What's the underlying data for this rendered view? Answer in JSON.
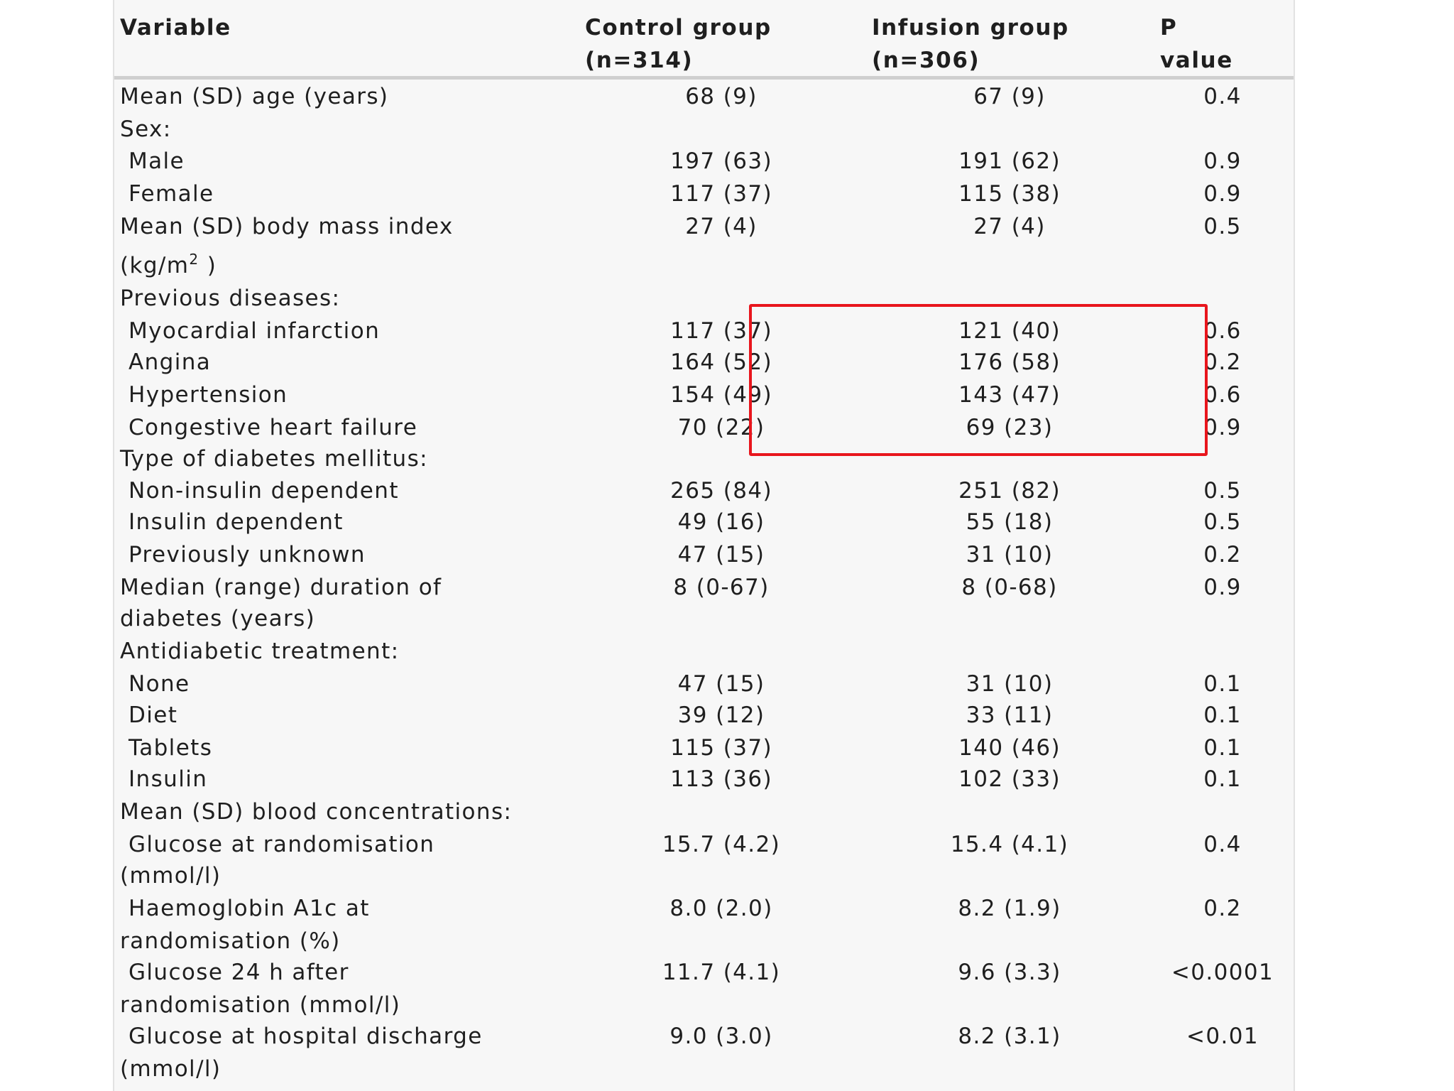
{
  "header": {
    "variable": "Variable",
    "control_line1": "Control group",
    "control_line2": "(n=314)",
    "infusion_line1": "Infusion group",
    "infusion_line2": "(n=306)",
    "p_line1": "P",
    "p_line2": "value"
  },
  "rows": [
    {
      "label": "Mean (SD) age (years)",
      "control": "68 (9)",
      "infusion": "67 (9)",
      "p": "0.4"
    },
    {
      "label": "Sex:",
      "control": "",
      "infusion": "",
      "p": ""
    },
    {
      "label": "Male",
      "control": "197 (63)",
      "infusion": "191 (62)",
      "p": "0.9"
    },
    {
      "label": "Female",
      "control": "117 (37)",
      "infusion": "115 (38)",
      "p": "0.9"
    },
    {
      "label": "Mean (SD) body mass index",
      "control": "27 (4)",
      "infusion": "27 (4)",
      "p": "0.5"
    },
    {
      "label": "(kg/m",
      "label_sup": "2",
      "label_tail": " )",
      "control": "",
      "infusion": "",
      "p": ""
    },
    {
      "label": "Previous diseases:",
      "control": "",
      "infusion": "",
      "p": ""
    },
    {
      "label": "Myocardial infarction",
      "control": "117 (37)",
      "infusion": "121 (40)",
      "p": "0.6"
    },
    {
      "label": "Angina",
      "control": "164 (52)",
      "infusion": "176 (58)",
      "p": "0.2"
    },
    {
      "label": "Hypertension",
      "control": "154 (49)",
      "infusion": "143 (47)",
      "p": "0.6"
    },
    {
      "label": "Congestive heart failure",
      "control": "70 (22)",
      "infusion": "69 (23)",
      "p": "0.9"
    },
    {
      "label": "Type of diabetes mellitus:",
      "control": "",
      "infusion": "",
      "p": ""
    },
    {
      "label": "Non-insulin dependent",
      "control": "265 (84)",
      "infusion": "251 (82)",
      "p": "0.5"
    },
    {
      "label": "Insulin dependent",
      "control": "49 (16)",
      "infusion": "55 (18)",
      "p": "0.5"
    },
    {
      "label": "Previously unknown",
      "control": "47 (15)",
      "infusion": "31 (10)",
      "p": "0.2"
    },
    {
      "label": "Median (range) duration of",
      "control": "8 (0-67)",
      "infusion": "8 (0-68)",
      "p": "0.9"
    },
    {
      "label": "diabetes (years)",
      "control": "",
      "infusion": "",
      "p": ""
    },
    {
      "label": "Antidiabetic treatment:",
      "control": "",
      "infusion": "",
      "p": ""
    },
    {
      "label": "None",
      "control": "47 (15)",
      "infusion": "31 (10)",
      "p": "0.1"
    },
    {
      "label": "Diet",
      "control": "39 (12)",
      "infusion": "33 (11)",
      "p": "0.1"
    },
    {
      "label": "Tablets",
      "control": "115 (37)",
      "infusion": "140 (46)",
      "p": "0.1"
    },
    {
      "label": "Insulin",
      "control": "113 (36)",
      "infusion": "102 (33)",
      "p": "0.1"
    },
    {
      "label": "Mean (SD) blood concentrations:",
      "control": "",
      "infusion": "",
      "p": ""
    },
    {
      "label": "Glucose at randomisation",
      "control": "15.7 (4.2)",
      "infusion": "15.4 (4.1)",
      "p": "0.4"
    },
    {
      "label": "(mmol/l)",
      "control": "",
      "infusion": "",
      "p": ""
    },
    {
      "label": "Haemoglobin A1c at",
      "control": "8.0 (2.0)",
      "infusion": "8.2 (1.9)",
      "p": "0.2"
    },
    {
      "label": "randomisation (%)",
      "control": "",
      "infusion": "",
      "p": ""
    },
    {
      "label": "Glucose 24 h after",
      "control": "11.7 (4.1)",
      "infusion": "9.6 (3.3)",
      "p": "<0.0001"
    },
    {
      "label": "randomisation (mmol/l)",
      "control": "",
      "infusion": "",
      "p": ""
    },
    {
      "label": "Glucose at hospital discharge",
      "control": "9.0 (3.0)",
      "infusion": "8.2 (3.1)",
      "p": "<0.01"
    },
    {
      "label": "(mmol/l)",
      "control": "",
      "infusion": "",
      "p": ""
    }
  ],
  "highlight_color": "#e8161d"
}
